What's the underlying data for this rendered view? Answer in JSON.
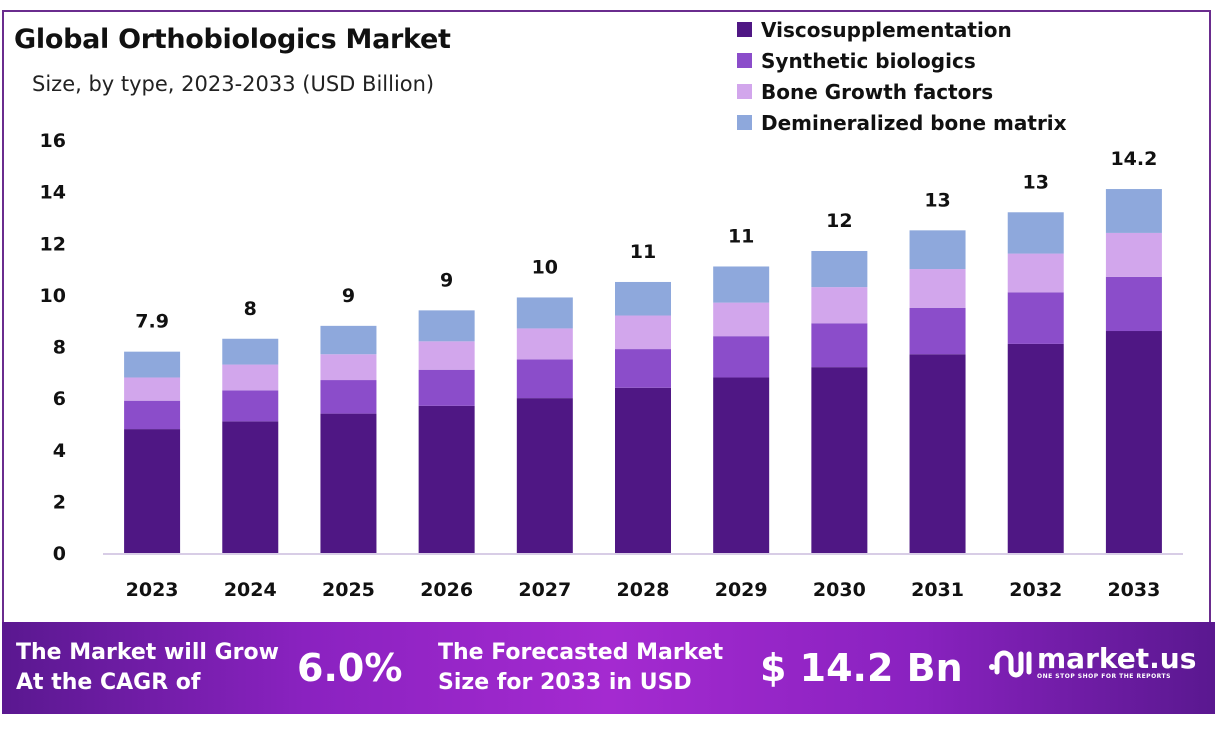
{
  "header": {
    "title": "Global Orthobiologics Market",
    "subtitle": "Size, by type, 2023-2033 (USD Billion)"
  },
  "chart_data": {
    "type": "bar",
    "stacked": true,
    "title": "Global Orthobiologics Market",
    "subtitle": "Size, by type, 2023-2033 (USD Billion)",
    "xlabel": "",
    "ylabel": "",
    "ylim": [
      0,
      16
    ],
    "yticks": [
      0,
      2,
      4,
      6,
      8,
      10,
      12,
      14,
      16
    ],
    "grid": false,
    "legend_position": "top-right",
    "categories": [
      "2023",
      "2024",
      "2025",
      "2026",
      "2027",
      "2028",
      "2029",
      "2030",
      "2031",
      "2032",
      "2033"
    ],
    "series": [
      {
        "name": "Viscosupplementation",
        "color": "#4f1784",
        "values": [
          4.8,
          5.1,
          5.4,
          5.7,
          6.0,
          6.4,
          6.8,
          7.2,
          7.7,
          8.1,
          8.6
        ]
      },
      {
        "name": "Synthetic biologics",
        "color": "#8b4dca",
        "values": [
          1.1,
          1.2,
          1.3,
          1.4,
          1.5,
          1.5,
          1.6,
          1.7,
          1.8,
          2.0,
          2.1
        ]
      },
      {
        "name": "Bone Growth factors",
        "color": "#d2a6ec",
        "values": [
          0.9,
          1.0,
          1.0,
          1.1,
          1.2,
          1.3,
          1.3,
          1.4,
          1.5,
          1.5,
          1.7
        ]
      },
      {
        "name": "Demineralized bone matrix",
        "color": "#8ea8dc",
        "values": [
          1.0,
          1.0,
          1.1,
          1.2,
          1.2,
          1.3,
          1.4,
          1.4,
          1.5,
          1.6,
          1.7
        ]
      }
    ],
    "total_labels": [
      "7.9",
      "8",
      "9",
      "9",
      "10",
      "11",
      "11",
      "12",
      "13",
      "13",
      "14.2"
    ]
  },
  "footer": {
    "cagr_text_line1": "The Market will Grow",
    "cagr_text_line2": "At the CAGR of",
    "cagr_value": "6.0%",
    "forecast_text_line1": "The Forecasted Market",
    "forecast_text_line2": "Size for 2033 in USD",
    "forecast_value": "$ 14.2 Bn",
    "brand_name": "market.us",
    "brand_tagline": "ONE STOP SHOP FOR THE REPORTS"
  }
}
